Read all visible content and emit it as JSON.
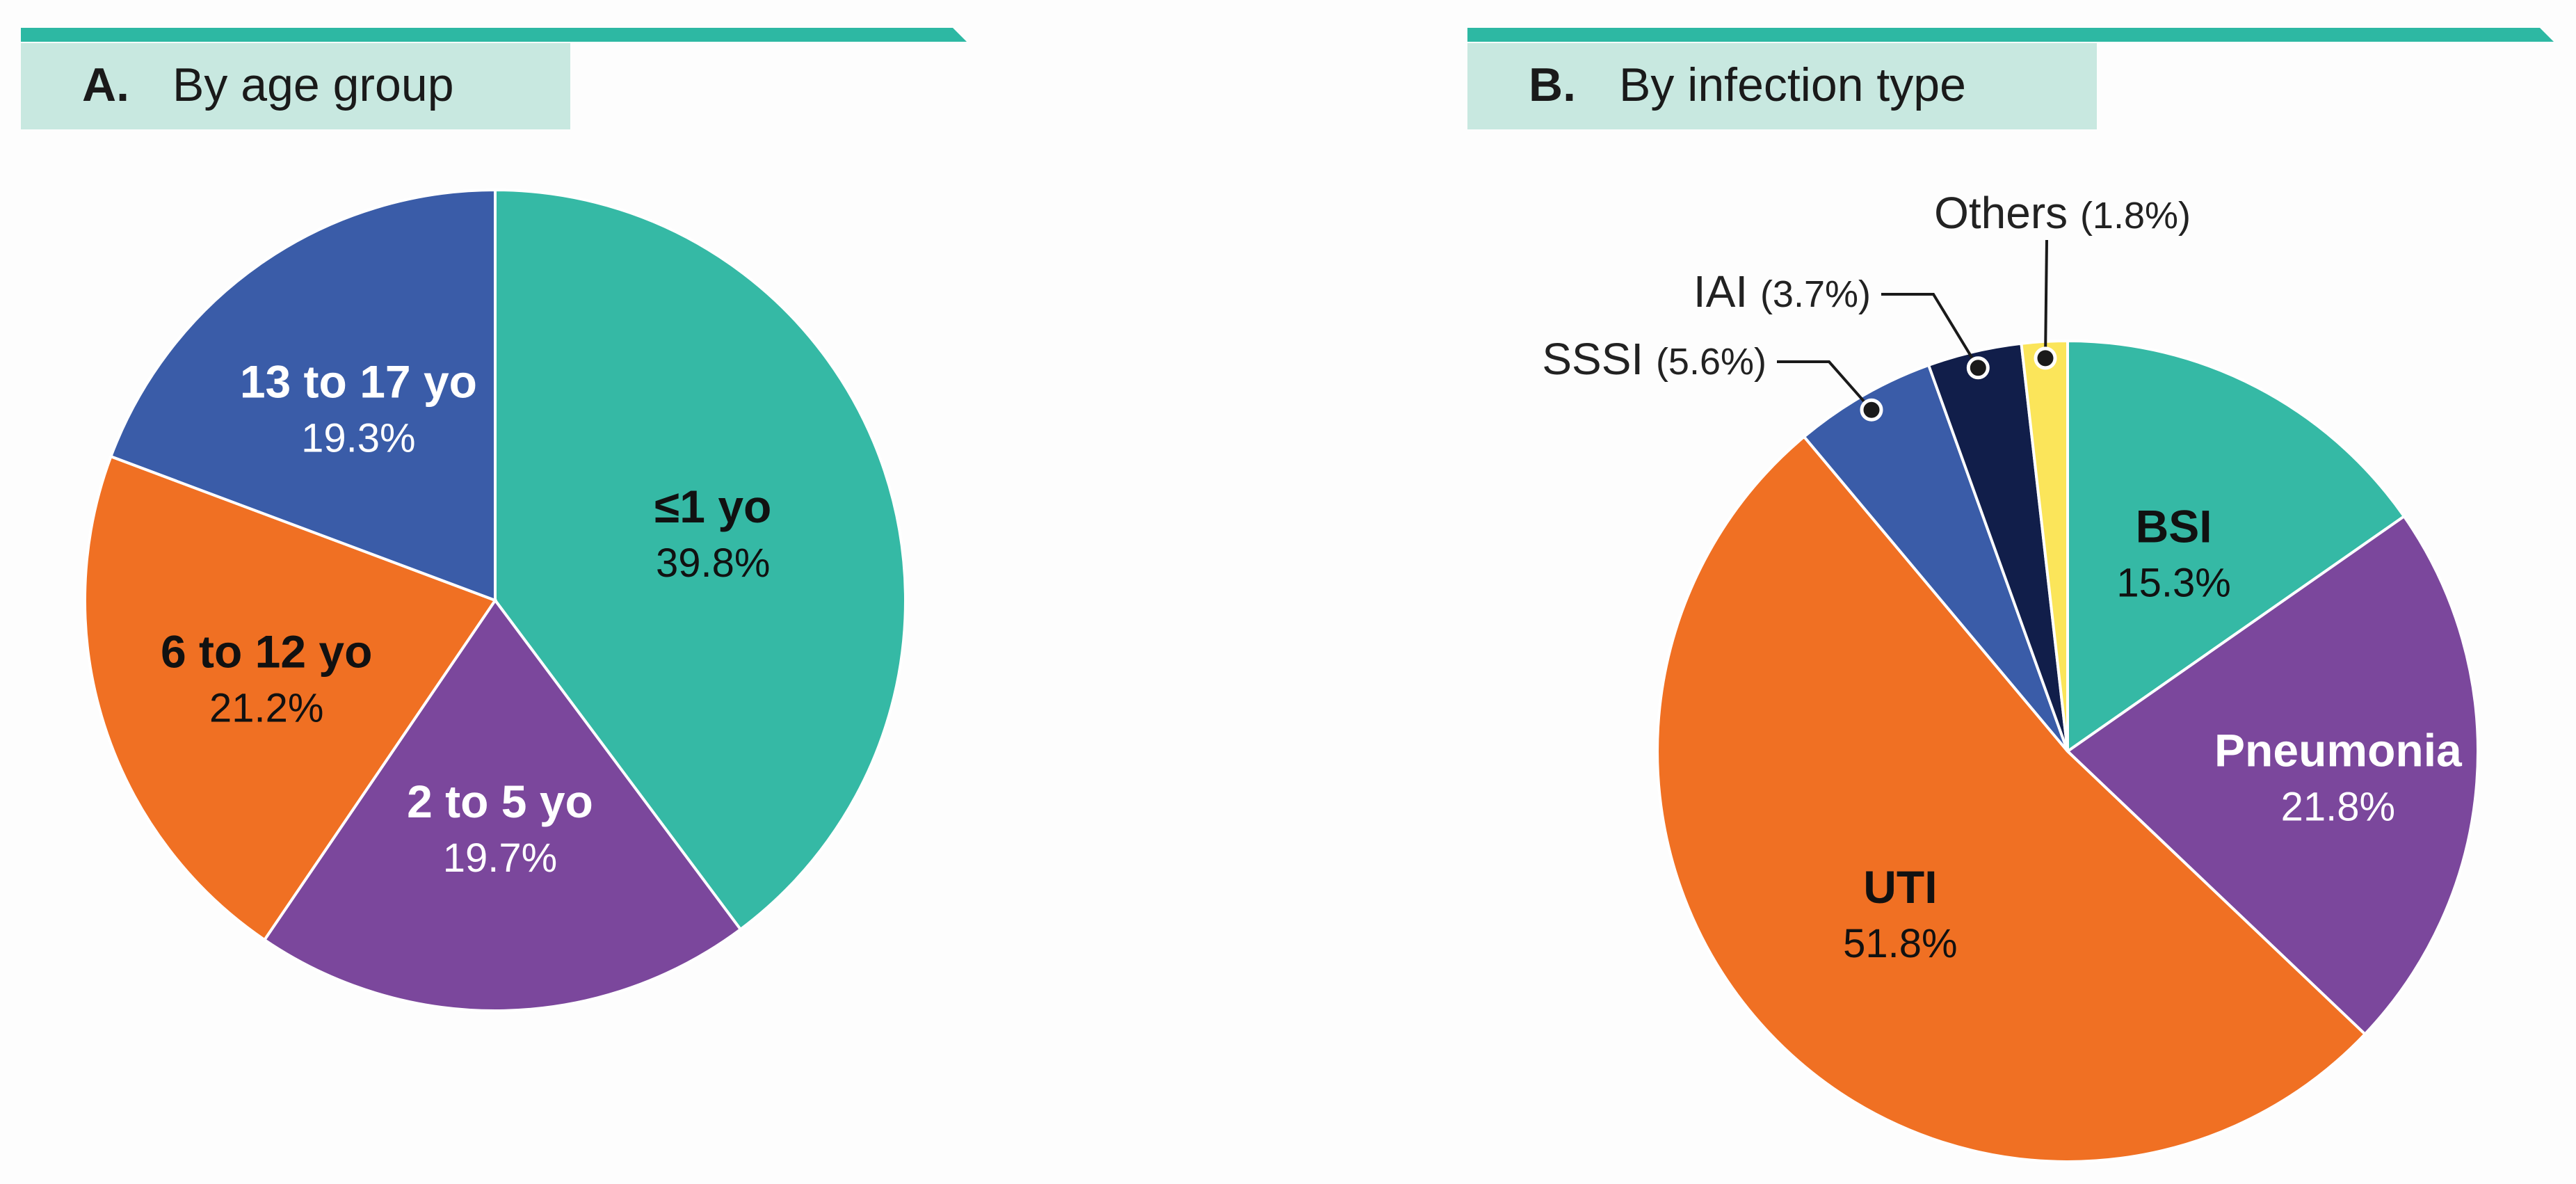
{
  "colors": {
    "accent_bar": "#2db8a3",
    "title_bg": "#c8e8e0",
    "teal": "#35b9a5",
    "purple": "#7b479c",
    "orange": "#f07023",
    "blue": "#3a5ca8",
    "navy": "#111e4a",
    "yellow": "#fbe55a"
  },
  "chart_data": [
    {
      "type": "pie",
      "panel_letter": "A.",
      "title": "By age group",
      "slices": [
        {
          "label": "≤1 yo",
          "pct_text": "39.8%",
          "value": 39.8,
          "color": "#35b9a5",
          "label_color": "#111111"
        },
        {
          "label": "2 to 5 yo",
          "pct_text": "19.7%",
          "value": 19.7,
          "color": "#7b479c",
          "label_color": "#ffffff"
        },
        {
          "label": "6 to 12 yo",
          "pct_text": "21.2%",
          "value": 21.2,
          "color": "#f07023",
          "label_color": "#111111"
        },
        {
          "label": "13 to 17 yo",
          "pct_text": "19.3%",
          "value": 19.3,
          "color": "#3a5ca8",
          "label_color": "#ffffff"
        }
      ]
    },
    {
      "type": "pie",
      "panel_letter": "B.",
      "title": "By infection type",
      "slices": [
        {
          "label": "BSI",
          "pct_text": "15.3%",
          "value": 15.3,
          "color": "#35b9a5",
          "label_color": "#111111"
        },
        {
          "label": "Pneumonia",
          "pct_text": "21.8%",
          "value": 21.8,
          "color": "#7b479c",
          "label_color": "#ffffff"
        },
        {
          "label": "UTI",
          "pct_text": "51.8%",
          "value": 51.8,
          "color": "#f07023",
          "label_color": "#111111"
        },
        {
          "label": "SSSI",
          "pct_text": "(5.6%)",
          "value": 5.6,
          "color": "#3a5ca8",
          "label_color": "#222222",
          "callout": true
        },
        {
          "label": "IAI",
          "pct_text": "(3.7%)",
          "value": 3.7,
          "color": "#111e4a",
          "label_color": "#222222",
          "callout": true
        },
        {
          "label": "Others",
          "pct_text": "(1.8%)",
          "value": 1.8,
          "color": "#fbe55a",
          "label_color": "#222222",
          "callout": true
        }
      ]
    }
  ]
}
